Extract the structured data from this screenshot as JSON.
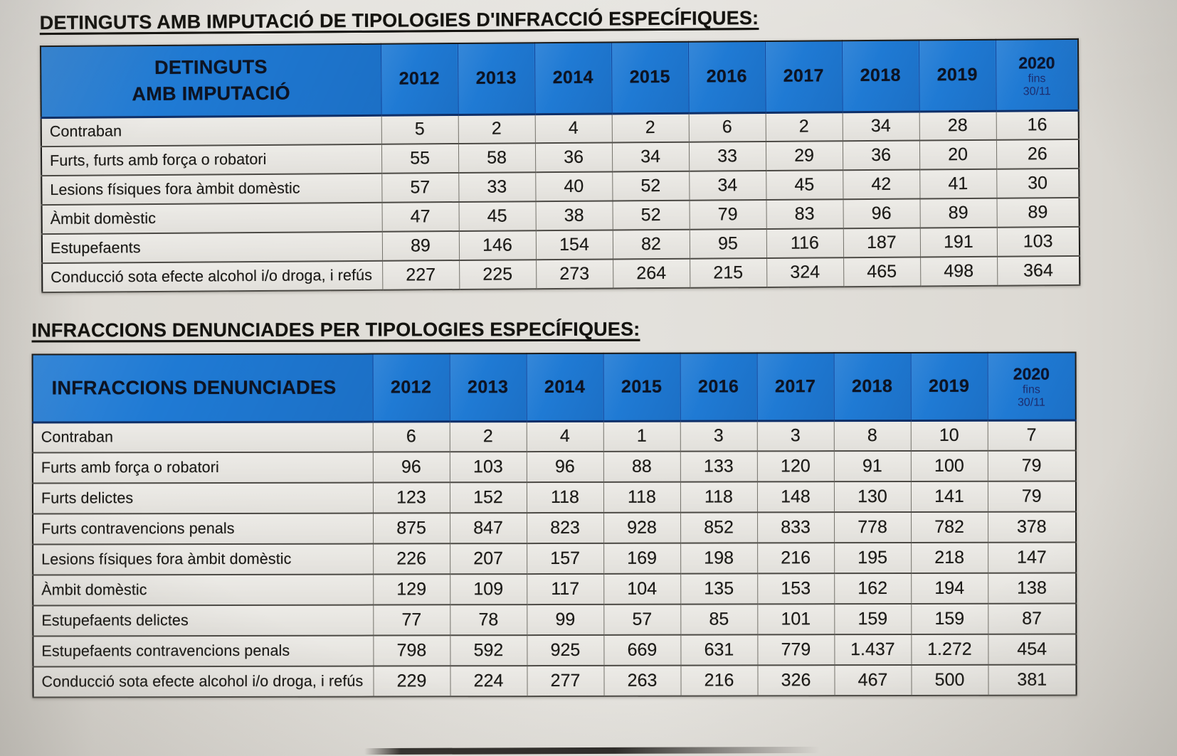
{
  "document": {
    "sections": [
      {
        "title": "DETINGUTS AMB IMPUTACIÓ DE TIPOLOGIES D'INFRACCIÓ ESPECÍFIQUES:",
        "table": {
          "corner_label": "DETINGUTS\nAMB IMPUTACIÓ",
          "years": [
            "2012",
            "2013",
            "2014",
            "2015",
            "2016",
            "2017",
            "2018",
            "2019"
          ],
          "final_year": "2020",
          "final_note_line1": "fins",
          "final_note_line2": "30/11",
          "rows": [
            {
              "label": "Contraban",
              "values": [
                "5",
                "2",
                "4",
                "2",
                "6",
                "2",
                "34",
                "28",
                "16"
              ]
            },
            {
              "label": "Furts, furts amb força o robatori",
              "values": [
                "55",
                "58",
                "36",
                "34",
                "33",
                "29",
                "36",
                "20",
                "26"
              ]
            },
            {
              "label": "Lesions físiques fora àmbit domèstic",
              "values": [
                "57",
                "33",
                "40",
                "52",
                "34",
                "45",
                "42",
                "41",
                "30"
              ]
            },
            {
              "label": "Àmbit domèstic",
              "values": [
                "47",
                "45",
                "38",
                "52",
                "79",
                "83",
                "96",
                "89",
                "89"
              ]
            },
            {
              "label": "Estupefaents",
              "values": [
                "89",
                "146",
                "154",
                "82",
                "95",
                "116",
                "187",
                "191",
                "103"
              ]
            },
            {
              "label": "Conducció sota efecte alcohol i/o droga, i refús",
              "values": [
                "227",
                "225",
                "273",
                "264",
                "215",
                "324",
                "465",
                "498",
                "364"
              ]
            }
          ]
        }
      },
      {
        "title": "INFRACCIONS DENUNCIADES PER TIPOLOGIES ESPECÍFIQUES:",
        "table": {
          "corner_label": "INFRACCIONS DENUNCIADES",
          "years": [
            "2012",
            "2013",
            "2014",
            "2015",
            "2016",
            "2017",
            "2018",
            "2019"
          ],
          "final_year": "2020",
          "final_note_line1": "fins",
          "final_note_line2": "30/11",
          "rows": [
            {
              "label": "Contraban",
              "values": [
                "6",
                "2",
                "4",
                "1",
                "3",
                "3",
                "8",
                "10",
                "7"
              ]
            },
            {
              "label": "Furts amb força o robatori",
              "values": [
                "96",
                "103",
                "96",
                "88",
                "133",
                "120",
                "91",
                "100",
                "79"
              ]
            },
            {
              "label": "Furts delictes",
              "values": [
                "123",
                "152",
                "118",
                "118",
                "118",
                "148",
                "130",
                "141",
                "79"
              ]
            },
            {
              "label": "Furts contravencions penals",
              "values": [
                "875",
                "847",
                "823",
                "928",
                "852",
                "833",
                "778",
                "782",
                "378"
              ]
            },
            {
              "label": "Lesions físiques fora àmbit domèstic",
              "values": [
                "226",
                "207",
                "157",
                "169",
                "198",
                "216",
                "195",
                "218",
                "147"
              ]
            },
            {
              "label": "Àmbit domèstic",
              "values": [
                "129",
                "109",
                "117",
                "104",
                "135",
                "153",
                "162",
                "194",
                "138"
              ]
            },
            {
              "label": "Estupefaents delictes",
              "values": [
                "77",
                "78",
                "99",
                "57",
                "85",
                "101",
                "159",
                "159",
                "87"
              ]
            },
            {
              "label": "Estupefaents contravencions penals",
              "values": [
                "798",
                "592",
                "925",
                "669",
                "631",
                "779",
                "1.437",
                "1.272",
                "454"
              ]
            },
            {
              "label": "Conducció sota efecte alcohol i/o droga, i refús",
              "values": [
                "229",
                "224",
                "277",
                "263",
                "216",
                "326",
                "467",
                "500",
                "381"
              ]
            }
          ]
        }
      }
    ],
    "colors": {
      "header_blue": "#1f7ad4",
      "paper": "#dad7d1",
      "cell_background": "#e9e7e2"
    }
  }
}
